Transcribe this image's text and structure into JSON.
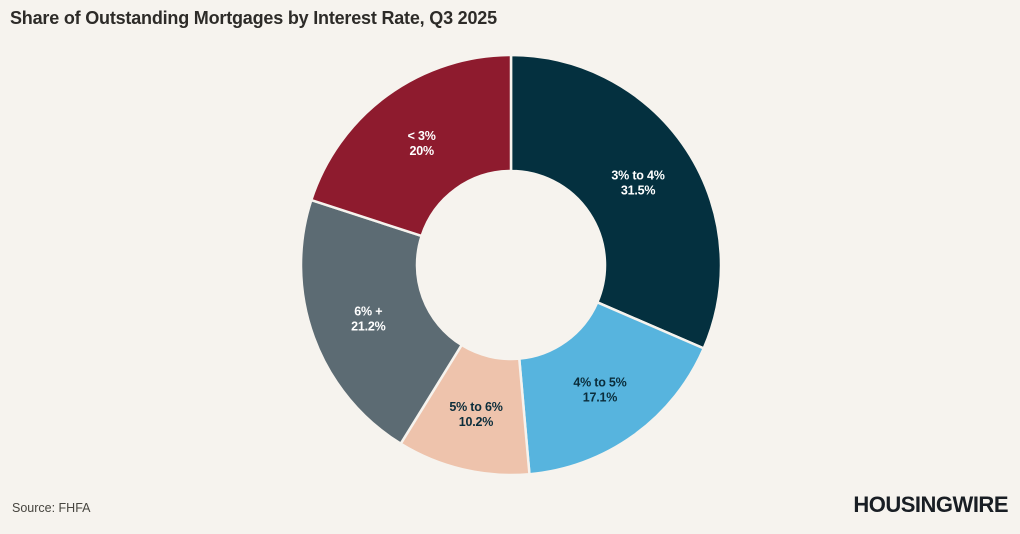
{
  "background_color": "#f6f3ee",
  "header": {
    "title": "Share of Outstanding Mortgages by Interest Rate, Q3 2025"
  },
  "footer": {
    "source": "Source: FHFA",
    "brand": "HOUSINGWIRE"
  },
  "chart_data": {
    "type": "pie",
    "donut": true,
    "title": "Share of Outstanding Mortgages by Interest Rate, Q3 2025",
    "start_angle_deg": 0,
    "direction": "clockwise",
    "labels_on_slices": true,
    "value_suffix": "%",
    "legend": "none",
    "slices": [
      {
        "label": "3% to 4%",
        "value": 31.5,
        "color": "#04303f",
        "label_color": "#ffffff"
      },
      {
        "label": "4% to 5%",
        "value": 17.1,
        "color": "#57b4de",
        "label_color": "#0b2d3b"
      },
      {
        "label": "5% to 6%",
        "value": 10.2,
        "color": "#eec3ac",
        "label_color": "#0b2d3b"
      },
      {
        "label": "6% +",
        "value": 21.2,
        "color": "#5c6b73",
        "label_color": "#ffffff"
      },
      {
        "label": "< 3%",
        "value": 20,
        "color": "#8e1b2e",
        "label_color": "#ffffff"
      }
    ]
  }
}
